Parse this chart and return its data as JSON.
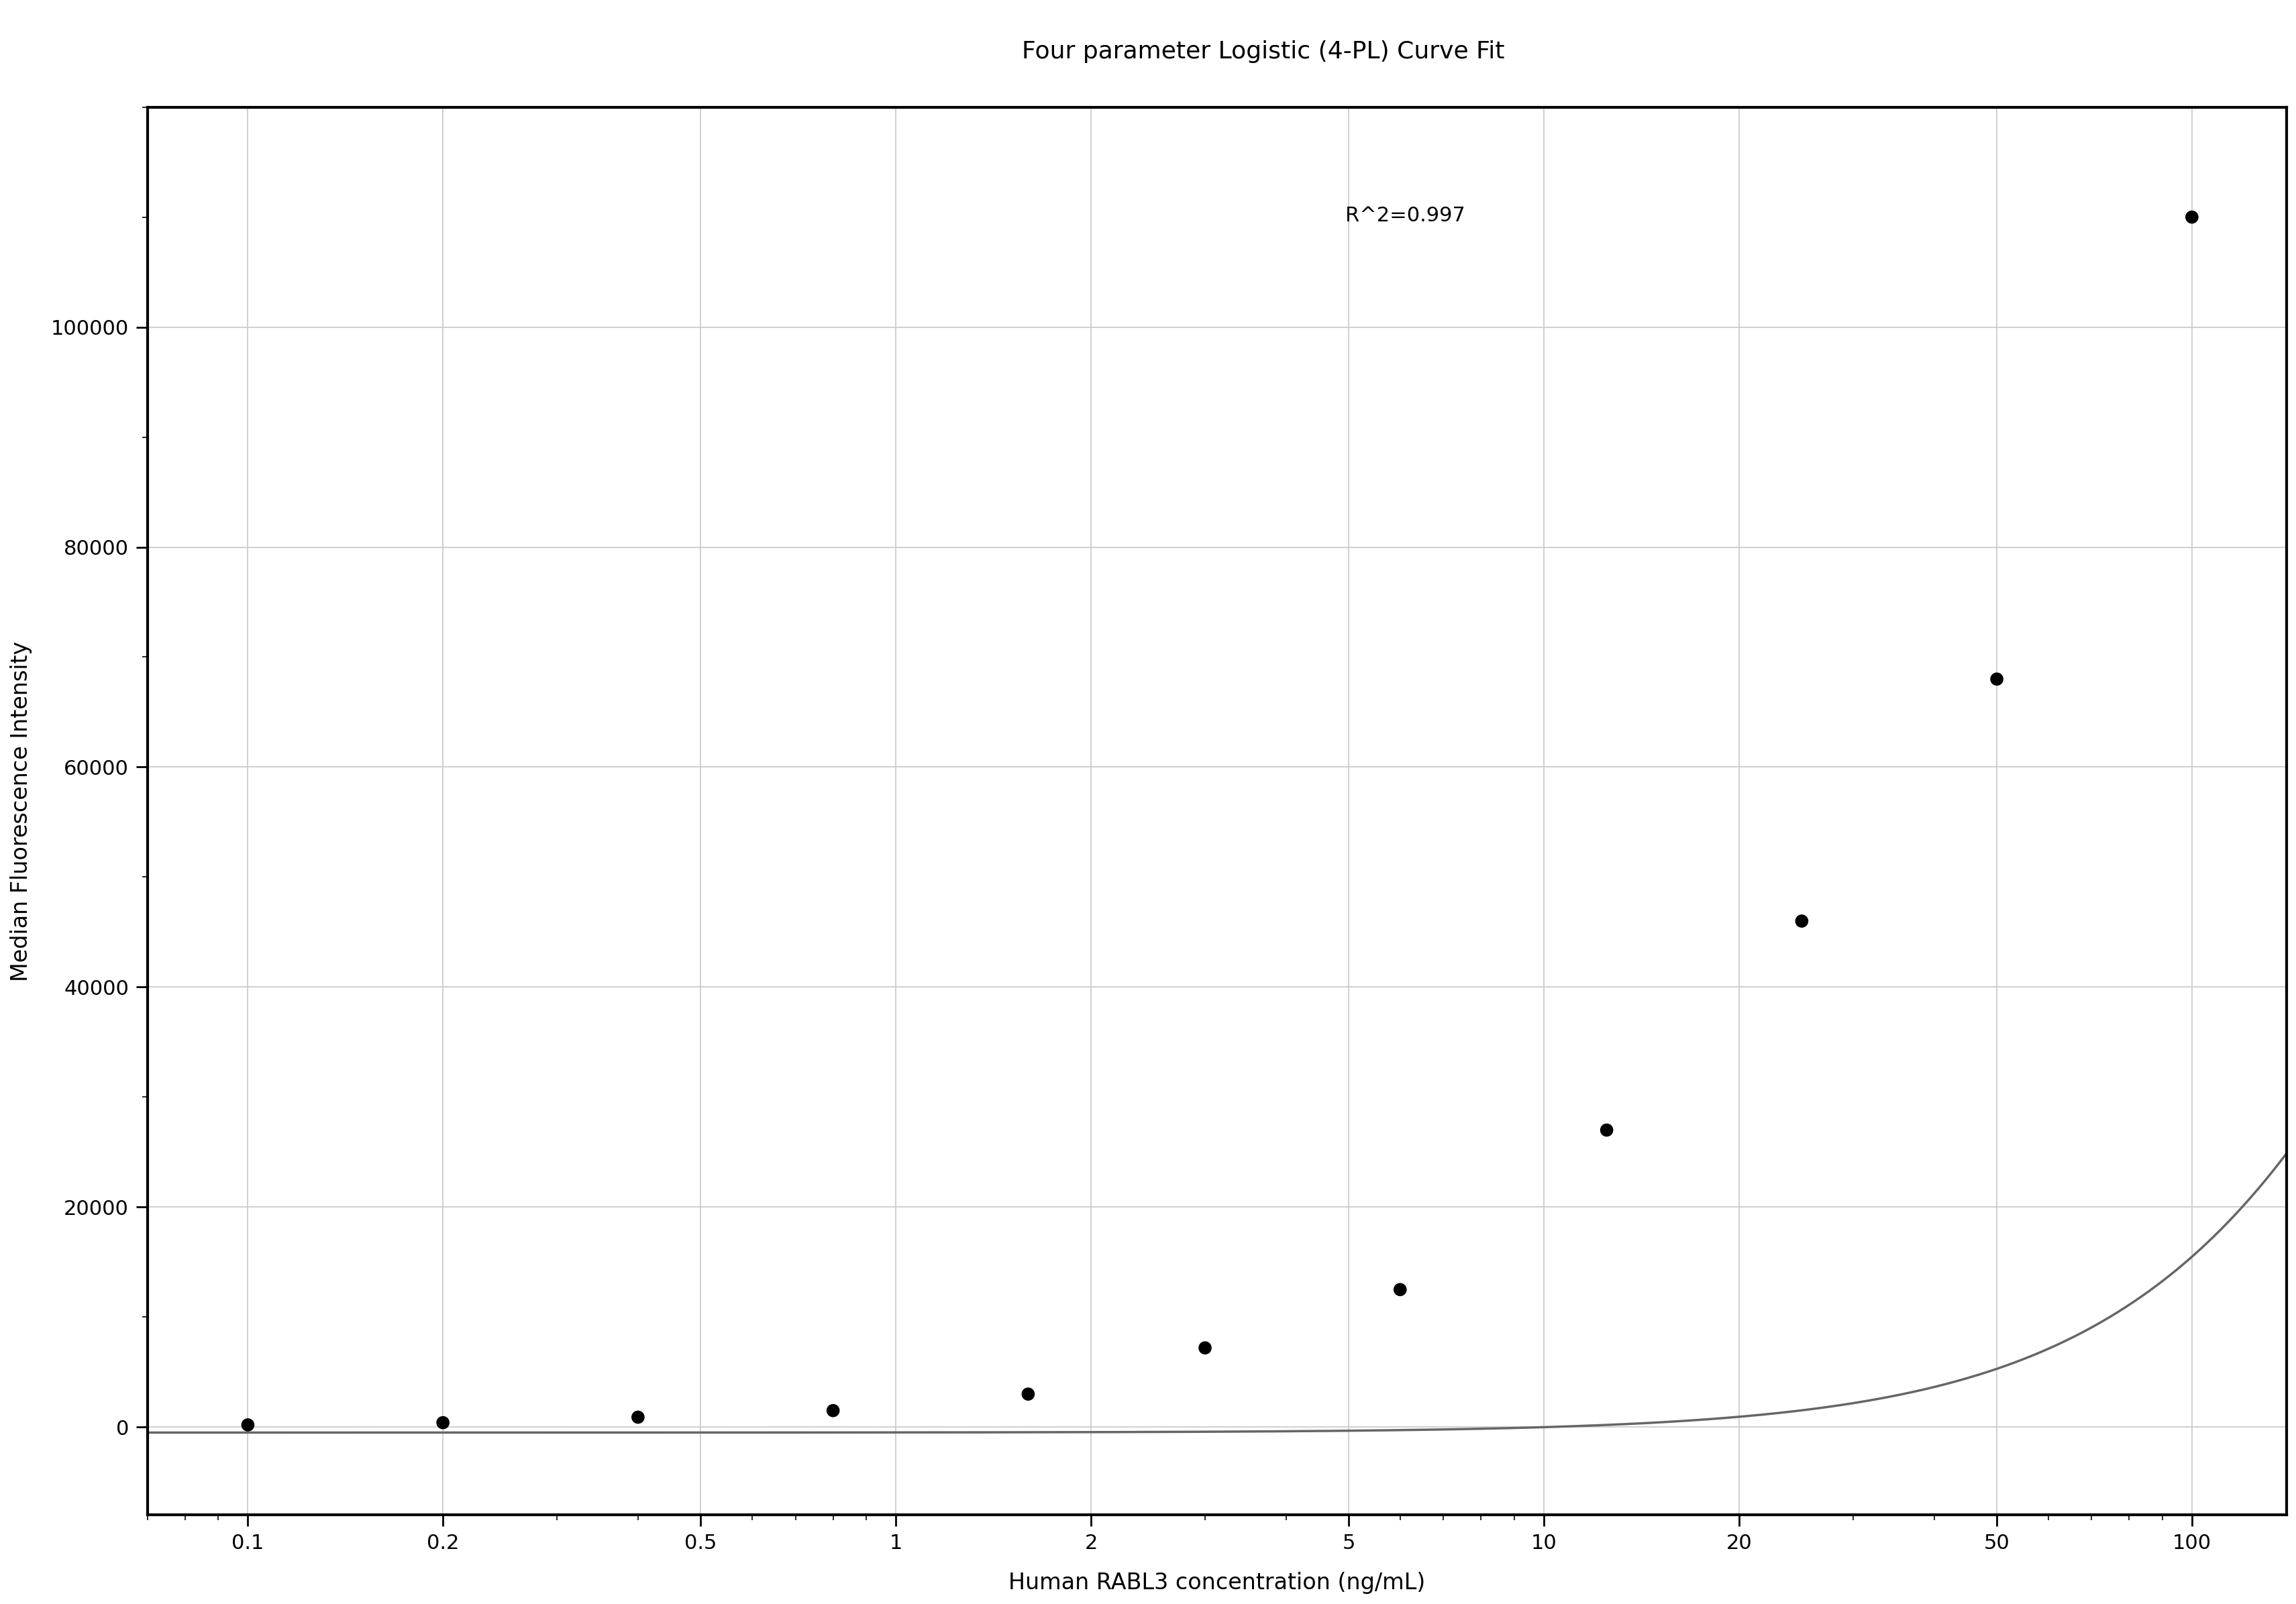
{
  "title": "Four parameter Logistic (4-PL) Curve Fit",
  "xlabel": "Human RABL3 concentration (ng/mL)",
  "ylabel": "Median Fluorescence Intensity",
  "r_squared": "R^2=0.997",
  "scatter_x": [
    0.1,
    0.2,
    0.4,
    0.8,
    1.6,
    3.0,
    6.0,
    12.5,
    25.0,
    50.0,
    100.0
  ],
  "scatter_y": [
    200,
    400,
    900,
    1500,
    3000,
    7200,
    12500,
    27000,
    46000,
    68000,
    110000
  ],
  "4pl_A": -500,
  "4pl_B": 1.55,
  "4pl_C": 450.0,
  "4pl_D": 180000,
  "xmin": 0.07,
  "xmax": 140,
  "ymin": -8000,
  "ymax": 120000,
  "xticks": [
    0.1,
    0.2,
    0.5,
    1,
    2,
    5,
    10,
    20,
    50,
    100
  ],
  "yticks": [
    0,
    20000,
    40000,
    60000,
    80000,
    100000
  ],
  "background_color": "#ffffff",
  "grid_color": "#c8c8c8",
  "scatter_color": "#000000",
  "line_color": "#666666",
  "title_fontsize": 26,
  "label_fontsize": 24,
  "tick_fontsize": 22,
  "annotation_fontsize": 22
}
